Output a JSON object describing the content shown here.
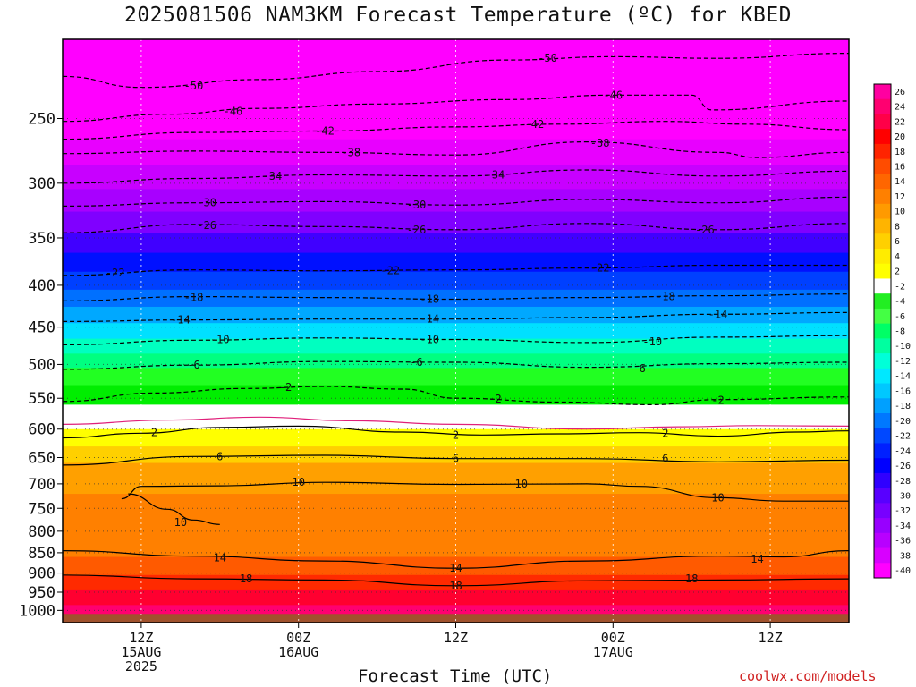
{
  "chart_data": {
    "type": "heatmap",
    "title": "2025081506 NAM3KM Forecast Temperature (ºC) for KBED",
    "xlabel": "Forecast Time (UTC)",
    "credit": "coolwx.com/models",
    "y_axis": {
      "scale": "log",
      "inverted": true,
      "range_hPa": [
        1035,
        200
      ],
      "ticks": [
        250,
        300,
        350,
        400,
        450,
        500,
        550,
        600,
        650,
        700,
        750,
        800,
        850,
        900,
        950,
        1000
      ]
    },
    "x_axis": {
      "ticks": [
        {
          "hour": 6,
          "label": [
            "12Z",
            "15AUG",
            "2025"
          ]
        },
        {
          "hour": 18,
          "label": [
            "00Z",
            "16AUG"
          ]
        },
        {
          "hour": 30,
          "label": [
            "12Z"
          ]
        },
        {
          "hour": 42,
          "label": [
            "00Z",
            "17AUG"
          ]
        },
        {
          "hour": 54,
          "label": [
            "12Z"
          ]
        }
      ],
      "range_hours": [
        0,
        60
      ]
    },
    "grid": true,
    "colorbar": {
      "labels": [
        26,
        24,
        22,
        20,
        18,
        16,
        14,
        12,
        10,
        8,
        6,
        4,
        2,
        -2,
        -4,
        -6,
        -8,
        -10,
        -12,
        -14,
        -16,
        -18,
        -20,
        -22,
        -24,
        -26,
        -28,
        -30,
        -32,
        -34,
        -36,
        -38,
        -40
      ],
      "colors": [
        "#ff00a0",
        "#ff0070",
        "#ff0048",
        "#ff0000",
        "#ff2400",
        "#ff4c00",
        "#ff6600",
        "#ff8000",
        "#ff9a00",
        "#ffb400",
        "#ffd000",
        "#ffec00",
        "#ffff00",
        "#ffffff",
        "#22ee22",
        "#44ff44",
        "#00ff66",
        "#00ffa0",
        "#00ffd8",
        "#00e8ff",
        "#00c8ff",
        "#00a0ff",
        "#0078ff",
        "#0048ff",
        "#0020ff",
        "#0000ff",
        "#3000ff",
        "#5800ff",
        "#7800ff",
        "#9800ff",
        "#b800ff",
        "#d800ff",
        "#ff00ff"
      ]
    },
    "bands": [
      {
        "from_hPa": 200,
        "to_hPa": 265,
        "color": "#ff00ff"
      },
      {
        "from_hPa": 265,
        "to_hPa": 285,
        "color": "#e800ff"
      },
      {
        "from_hPa": 285,
        "to_hPa": 305,
        "color": "#c800ff"
      },
      {
        "from_hPa": 305,
        "to_hPa": 325,
        "color": "#a800ff"
      },
      {
        "from_hPa": 325,
        "to_hPa": 345,
        "color": "#8000ff"
      },
      {
        "from_hPa": 345,
        "to_hPa": 365,
        "color": "#4000ff"
      },
      {
        "from_hPa": 365,
        "to_hPa": 385,
        "color": "#0010ff"
      },
      {
        "from_hPa": 385,
        "to_hPa": 405,
        "color": "#0040ff"
      },
      {
        "from_hPa": 405,
        "to_hPa": 425,
        "color": "#0070ff"
      },
      {
        "from_hPa": 425,
        "to_hPa": 445,
        "color": "#00a8ff"
      },
      {
        "from_hPa": 445,
        "to_hPa": 465,
        "color": "#00e0ff"
      },
      {
        "from_hPa": 465,
        "to_hPa": 485,
        "color": "#00ffc0"
      },
      {
        "from_hPa": 485,
        "to_hPa": 505,
        "color": "#00ff80"
      },
      {
        "from_hPa": 505,
        "to_hPa": 530,
        "color": "#22ff22"
      },
      {
        "from_hPa": 530,
        "to_hPa": 560,
        "color": "#00ee00"
      },
      {
        "from_hPa": 560,
        "to_hPa": 600,
        "color": "#ffffff"
      },
      {
        "from_hPa": 600,
        "to_hPa": 630,
        "color": "#ffff00"
      },
      {
        "from_hPa": 630,
        "to_hPa": 660,
        "color": "#ffd000"
      },
      {
        "from_hPa": 660,
        "to_hPa": 720,
        "color": "#ffa000"
      },
      {
        "from_hPa": 720,
        "to_hPa": 860,
        "color": "#ff8000"
      },
      {
        "from_hPa": 860,
        "to_hPa": 905,
        "color": "#ff5a00"
      },
      {
        "from_hPa": 905,
        "to_hPa": 945,
        "color": "#ff2a00"
      },
      {
        "from_hPa": 945,
        "to_hPa": 985,
        "color": "#ff0030"
      },
      {
        "from_hPa": 985,
        "to_hPa": 1010,
        "color": "#ff0070"
      },
      {
        "from_hPa": 1010,
        "to_hPa": 1035,
        "color": "#a0522d"
      }
    ],
    "contours": [
      {
        "value": -50,
        "color": "#000000",
        "dashed": true,
        "points": [
          [
            0,
            222
          ],
          [
            6,
            229
          ],
          [
            15,
            224
          ],
          [
            24,
            219
          ],
          [
            34,
            212
          ],
          [
            42,
            210
          ],
          [
            50,
            211
          ],
          [
            60,
            208
          ]
        ],
        "labels": [
          [
            10,
            228
          ],
          [
            37,
            211
          ]
        ]
      },
      {
        "value": -46,
        "color": "#000000",
        "dashed": true,
        "points": [
          [
            0,
            252
          ],
          [
            8,
            247
          ],
          [
            15,
            243
          ],
          [
            24,
            240
          ],
          [
            34,
            237
          ],
          [
            42,
            234
          ],
          [
            48,
            234
          ],
          [
            49.5,
            244
          ],
          [
            60,
            238
          ]
        ],
        "labels": [
          [
            13,
            245
          ],
          [
            42,
            234
          ]
        ]
      },
      {
        "value": -42,
        "color": "#000000",
        "dashed": true,
        "points": [
          [
            0,
            265
          ],
          [
            10,
            260
          ],
          [
            20,
            259
          ],
          [
            30,
            256
          ],
          [
            38,
            254
          ],
          [
            46,
            252
          ],
          [
            52,
            254
          ],
          [
            60,
            258
          ]
        ],
        "labels": [
          [
            20,
            259
          ],
          [
            36,
            254
          ]
        ]
      },
      {
        "value": -38,
        "color": "#000000",
        "dashed": true,
        "points": [
          [
            0,
            276
          ],
          [
            10,
            274
          ],
          [
            20,
            275
          ],
          [
            30,
            277
          ],
          [
            40,
            267
          ],
          [
            50,
            275
          ],
          [
            53,
            279
          ],
          [
            60,
            275
          ]
        ],
        "labels": [
          [
            22,
            275
          ],
          [
            41,
            268
          ]
        ]
      },
      {
        "value": -34,
        "color": "#000000",
        "dashed": true,
        "points": [
          [
            0,
            300
          ],
          [
            10,
            296
          ],
          [
            20,
            293
          ],
          [
            30,
            294
          ],
          [
            40,
            289
          ],
          [
            50,
            294
          ],
          [
            60,
            290
          ]
        ],
        "labels": [
          [
            16,
            294
          ],
          [
            33,
            293
          ]
        ]
      },
      {
        "value": -30,
        "color": "#000000",
        "dashed": true,
        "points": [
          [
            0,
            320
          ],
          [
            10,
            317
          ],
          [
            20,
            316
          ],
          [
            30,
            319
          ],
          [
            40,
            314
          ],
          [
            50,
            317
          ],
          [
            60,
            312
          ]
        ],
        "labels": [
          [
            11,
            317
          ],
          [
            27,
            319
          ]
        ]
      },
      {
        "value": -26,
        "color": "#000000",
        "dashed": true,
        "points": [
          [
            0,
            345
          ],
          [
            10,
            337
          ],
          [
            20,
            339
          ],
          [
            30,
            342
          ],
          [
            40,
            336
          ],
          [
            50,
            342
          ],
          [
            60,
            336
          ]
        ],
        "labels": [
          [
            11,
            338
          ],
          [
            27,
            342
          ],
          [
            49,
            342
          ]
        ]
      },
      {
        "value": -22,
        "color": "#000000",
        "dashed": true,
        "points": [
          [
            0,
            389
          ],
          [
            10,
            383
          ],
          [
            20,
            384
          ],
          [
            30,
            383
          ],
          [
            40,
            381
          ],
          [
            50,
            378
          ],
          [
            60,
            378
          ]
        ],
        "labels": [
          [
            4,
            386
          ],
          [
            25,
            384
          ],
          [
            41,
            381
          ]
        ]
      },
      {
        "value": -18,
        "color": "#000000",
        "dashed": true,
        "points": [
          [
            0,
            418
          ],
          [
            10,
            413
          ],
          [
            20,
            414
          ],
          [
            30,
            416
          ],
          [
            40,
            414
          ],
          [
            50,
            412
          ],
          [
            60,
            410
          ]
        ],
        "labels": [
          [
            10,
            414
          ],
          [
            28,
            416
          ],
          [
            46,
            413
          ]
        ]
      },
      {
        "value": -14,
        "color": "#000000",
        "dashed": true,
        "points": [
          [
            0,
            443
          ],
          [
            10,
            441
          ],
          [
            20,
            440
          ],
          [
            30,
            440
          ],
          [
            40,
            438
          ],
          [
            50,
            434
          ],
          [
            60,
            432
          ]
        ],
        "labels": [
          [
            9,
            441
          ],
          [
            28,
            440
          ],
          [
            50,
            434
          ]
        ]
      },
      {
        "value": -10,
        "color": "#000000",
        "dashed": true,
        "points": [
          [
            0,
            473
          ],
          [
            10,
            467
          ],
          [
            20,
            464
          ],
          [
            30,
            466
          ],
          [
            40,
            470
          ],
          [
            50,
            463
          ],
          [
            60,
            461
          ]
        ],
        "labels": [
          [
            12,
            466
          ],
          [
            28,
            466
          ],
          [
            45,
            469
          ]
        ]
      },
      {
        "value": -6,
        "color": "#000000",
        "dashed": true,
        "points": [
          [
            0,
            507
          ],
          [
            10,
            501
          ],
          [
            20,
            496
          ],
          [
            30,
            497
          ],
          [
            40,
            504
          ],
          [
            50,
            499
          ],
          [
            60,
            497
          ]
        ],
        "labels": [
          [
            10,
            501
          ],
          [
            27,
            497
          ],
          [
            44,
            506
          ]
        ]
      },
      {
        "value": -2,
        "color": "#000000",
        "dashed": true,
        "points": [
          [
            0,
            555
          ],
          [
            7,
            542
          ],
          [
            14,
            535
          ],
          [
            20,
            532
          ],
          [
            26,
            536
          ],
          [
            30,
            550
          ],
          [
            38,
            556
          ],
          [
            45,
            560
          ],
          [
            50,
            552
          ],
          [
            60,
            548
          ]
        ],
        "labels": [
          [
            17,
            533
          ],
          [
            33,
            551
          ],
          [
            50,
            553
          ]
        ]
      },
      {
        "value": 2,
        "color": "#e0207a",
        "dashed": false,
        "points": [
          [
            0,
            592
          ],
          [
            8,
            585
          ],
          [
            15,
            580
          ],
          [
            22,
            586
          ],
          [
            30,
            592
          ],
          [
            40,
            600
          ],
          [
            47,
            596
          ],
          [
            53,
            594
          ],
          [
            60,
            595
          ]
        ],
        "labels": []
      },
      {
        "value": 2,
        "color": "#000000",
        "dashed": false,
        "points": [
          [
            0,
            615
          ],
          [
            6,
            607
          ],
          [
            12,
            597
          ],
          [
            18,
            595
          ],
          [
            26,
            605
          ],
          [
            32,
            610
          ],
          [
            38,
            608
          ],
          [
            44,
            606
          ],
          [
            50,
            612
          ],
          [
            56,
            605
          ],
          [
            60,
            603
          ]
        ],
        "labels": [
          [
            7,
            606
          ],
          [
            30,
            610
          ],
          [
            46,
            607
          ]
        ]
      },
      {
        "value": 6,
        "color": "#000000",
        "dashed": false,
        "points": [
          [
            0,
            664
          ],
          [
            10,
            648
          ],
          [
            20,
            646
          ],
          [
            30,
            652
          ],
          [
            40,
            652
          ],
          [
            50,
            658
          ],
          [
            60,
            655
          ]
        ],
        "labels": [
          [
            12,
            648
          ],
          [
            30,
            652
          ],
          [
            46,
            652
          ]
        ]
      },
      {
        "value": 10,
        "color": "#000000",
        "dashed": false,
        "points": [
          [
            4.5,
            730
          ],
          [
            6,
            705
          ],
          [
            12,
            704
          ],
          [
            20,
            697
          ],
          [
            30,
            701
          ],
          [
            40,
            700
          ],
          [
            44,
            705
          ],
          [
            50,
            728
          ],
          [
            55,
            735
          ],
          [
            60,
            735
          ]
        ],
        "labels": [
          [
            18,
            697
          ],
          [
            35,
            700
          ],
          [
            50,
            728
          ]
        ]
      },
      {
        "value": 10,
        "color": "#000000",
        "dashed": false,
        "points": [
          [
            5,
            720
          ],
          [
            8,
            752
          ],
          [
            10,
            775
          ],
          [
            12,
            785
          ]
        ],
        "labels": [
          [
            9,
            780
          ]
        ]
      },
      {
        "value": 14,
        "color": "#000000",
        "dashed": false,
        "points": [
          [
            0,
            845
          ],
          [
            10,
            858
          ],
          [
            20,
            870
          ],
          [
            30,
            888
          ],
          [
            40,
            870
          ],
          [
            50,
            858
          ],
          [
            55,
            860
          ],
          [
            60,
            845
          ]
        ],
        "labels": [
          [
            12,
            862
          ],
          [
            30,
            888
          ],
          [
            53,
            865
          ]
        ]
      },
      {
        "value": 18,
        "color": "#000000",
        "dashed": false,
        "points": [
          [
            0,
            905
          ],
          [
            10,
            915
          ],
          [
            20,
            918
          ],
          [
            30,
            933
          ],
          [
            40,
            920
          ],
          [
            50,
            918
          ],
          [
            60,
            915
          ]
        ],
        "labels": [
          [
            14,
            915
          ],
          [
            30,
            933
          ],
          [
            48,
            915
          ]
        ]
      }
    ]
  }
}
